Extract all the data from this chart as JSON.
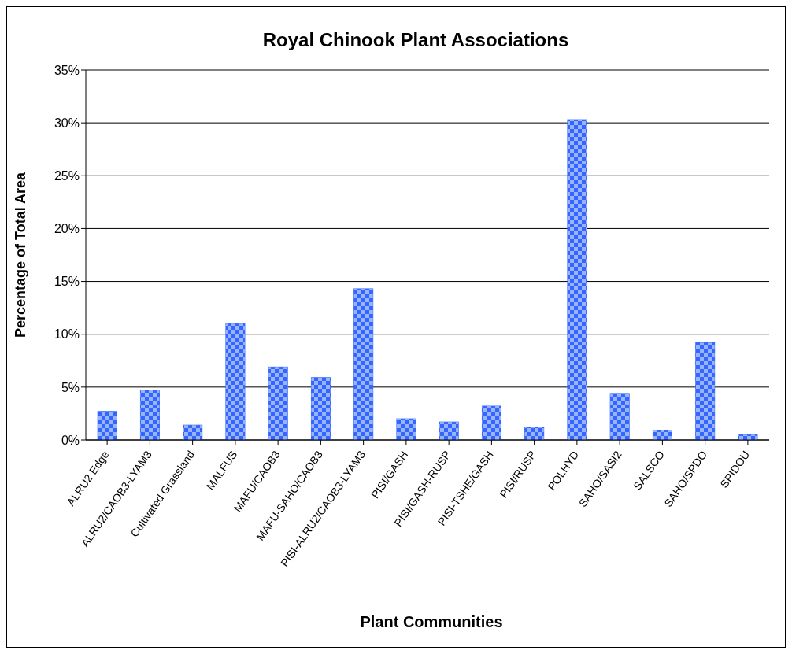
{
  "chart_data": {
    "type": "bar",
    "title": "Royal Chinook Plant Associations",
    "xlabel": "Plant Communities",
    "ylabel": "Percentage of Total Area",
    "categories": [
      "ALRU2 Edge",
      "ALRU2/CAOB3-LYAM3",
      "Cultivated Grassland",
      "MALFUS",
      "MAFU/CAOB3",
      "MAFU-SAHO/CAOB3",
      "PISI-ALRU2/CAOB3-LYAM3",
      "PISI/GASH",
      "PISI/GASH-RUSP",
      "PISI-TSHE/GASH",
      "PISI/RUSP",
      "POLHYD",
      "SAHO/SASI2",
      "SALSCO",
      "SAHO/SPDO",
      "SPIDOU"
    ],
    "values": [
      2.7,
      4.7,
      1.4,
      11.0,
      6.9,
      5.9,
      14.3,
      2.0,
      1.7,
      3.2,
      1.2,
      30.3,
      4.4,
      0.9,
      9.2,
      0.5
    ],
    "color": "#3366ff",
    "ylim": [
      0,
      35
    ],
    "yticks": [
      {
        "value": 0,
        "label": "0%"
      },
      {
        "value": 5,
        "label": "5%"
      },
      {
        "value": 10,
        "label": "10%"
      },
      {
        "value": 15,
        "label": "15%"
      },
      {
        "value": 20,
        "label": "20%"
      },
      {
        "value": 25,
        "label": "25%"
      },
      {
        "value": 30,
        "label": "30%"
      },
      {
        "value": 35,
        "label": "35%"
      }
    ],
    "grid": "y",
    "legend": false
  }
}
